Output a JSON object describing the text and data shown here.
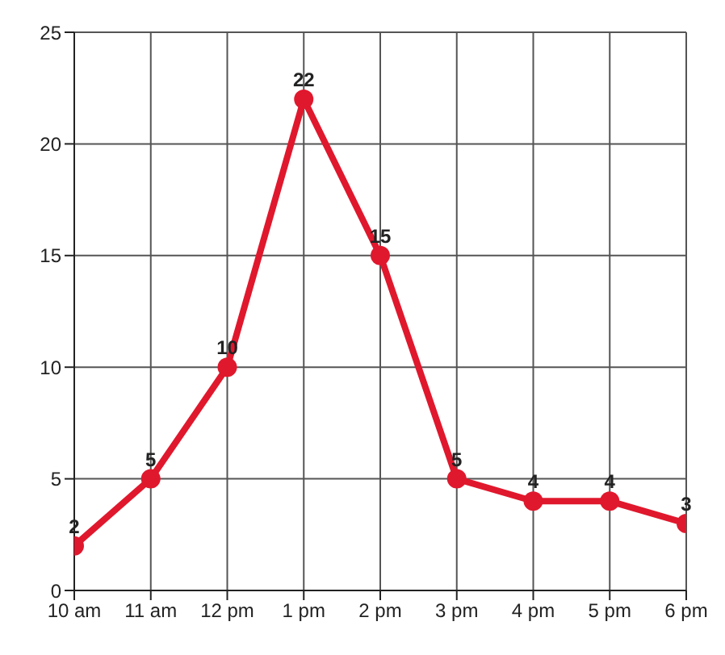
{
  "chart_data": {
    "type": "line",
    "categories": [
      "10 am",
      "11 am",
      "12 pm",
      "1 pm",
      "2 pm",
      "3 pm",
      "4 pm",
      "5 pm",
      "6 pm"
    ],
    "series": [
      {
        "color": "#e0182d",
        "values": [
          2,
          5,
          10,
          22,
          15,
          5,
          4,
          4,
          3
        ]
      }
    ],
    "ylim": [
      0,
      25
    ],
    "yticks": [
      0,
      5,
      10,
      15,
      20,
      25
    ],
    "grid": true,
    "marker": "circle",
    "line_style": "solid",
    "data_labels": true
  }
}
